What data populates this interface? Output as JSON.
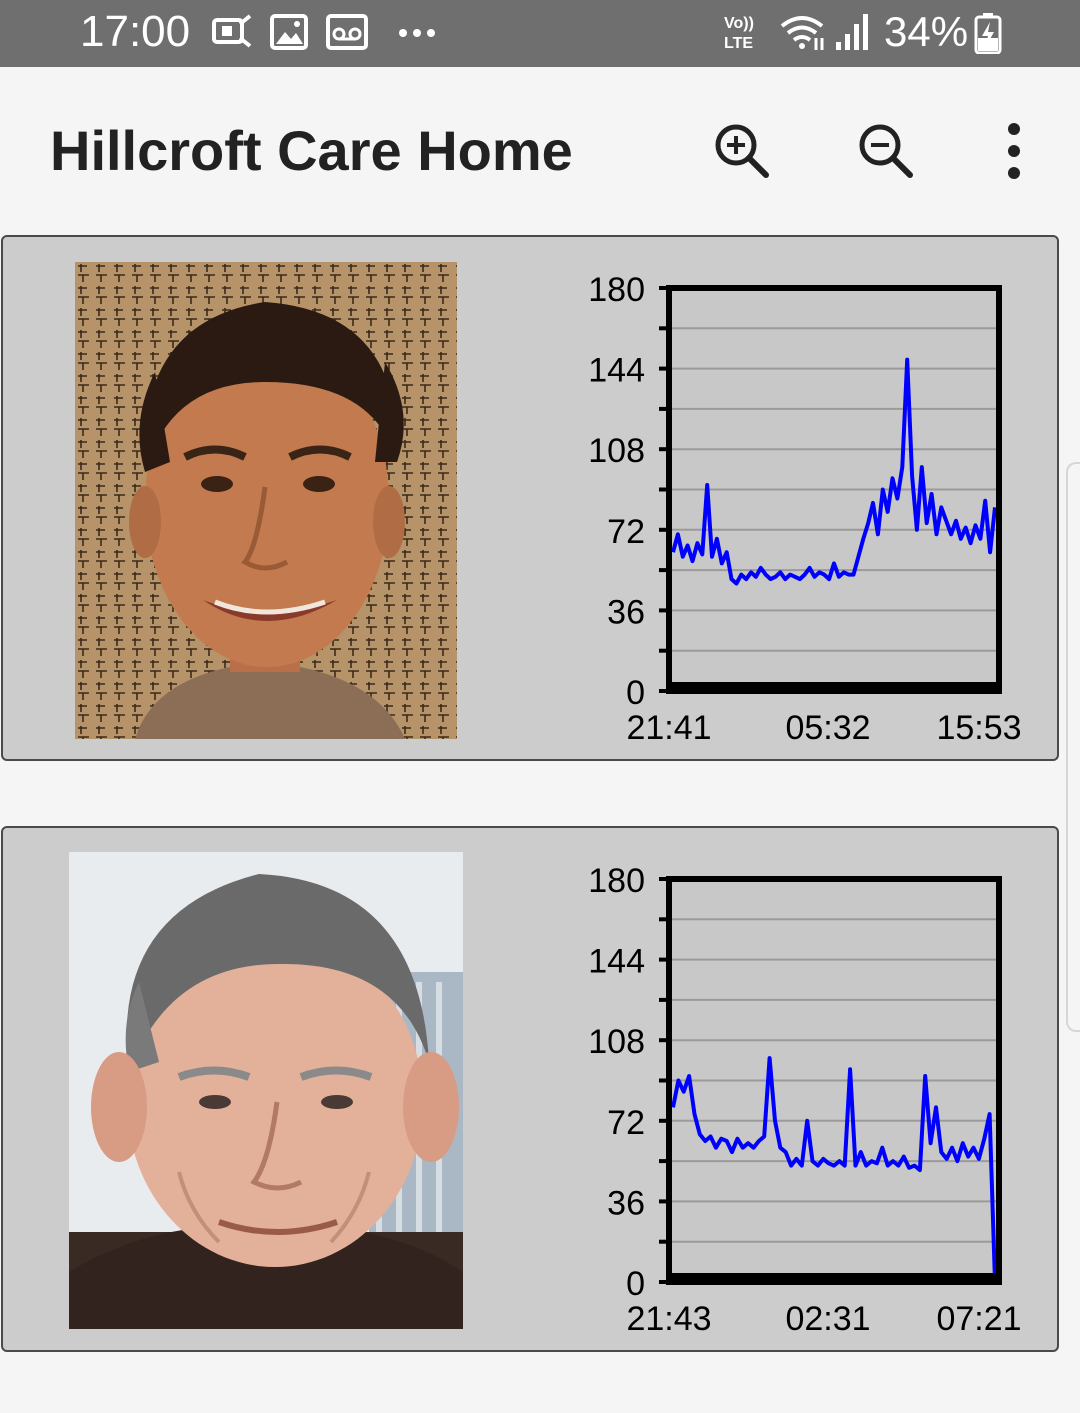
{
  "status_bar": {
    "time": "17:00",
    "battery": "34%",
    "icons": [
      "sim-card-icon",
      "image-icon",
      "voicemail-icon",
      "more-dots-icon",
      "volte-icon",
      "wifi-icon",
      "signal-icon",
      "battery-charging-icon"
    ]
  },
  "app_bar": {
    "title": "Hillcroft Care Home",
    "actions": [
      "zoom-in-icon",
      "zoom-out-icon",
      "overflow-menu-icon"
    ]
  },
  "colors": {
    "status_bar_bg": "#6f6f6f",
    "card_bg": "#cccccc",
    "plot_bg": "#c8c8c8",
    "series_line": "#0000ff"
  },
  "residents": [
    {
      "photo": "resident-photo-1",
      "chart_data": {
        "type": "line",
        "title": "",
        "xlabel": "",
        "ylabel": "",
        "yticks": [
          "0",
          "36",
          "72",
          "108",
          "144",
          "180"
        ],
        "ylim": [
          0,
          180
        ],
        "xticks": [
          "21:41",
          "05:32",
          "15:53"
        ],
        "grid": true,
        "series": [
          {
            "values": [
              62,
              70,
              60,
              65,
              58,
              66,
              61,
              92,
              60,
              68,
              57,
              62,
              50,
              48,
              52,
              50,
              53,
              51,
              55,
              52,
              50,
              51,
              53,
              50,
              52,
              51,
              50,
              52,
              55,
              51,
              53,
              52,
              50,
              57,
              51,
              53,
              52,
              52,
              60,
              68,
              75,
              84,
              70,
              90,
              80,
              95,
              86,
              100,
              148,
              96,
              72,
              100,
              75,
              88,
              70,
              82,
              76,
              70,
              76,
              68,
              73,
              66,
              74,
              68,
              85,
              62,
              82
            ]
          }
        ]
      }
    },
    {
      "photo": "resident-photo-2",
      "chart_data": {
        "type": "line",
        "title": "",
        "xlabel": "",
        "ylabel": "",
        "yticks": [
          "0",
          "36",
          "72",
          "108",
          "144",
          "180"
        ],
        "ylim": [
          0,
          180
        ],
        "xticks": [
          "21:43",
          "02:31",
          "07:21"
        ],
        "grid": true,
        "series": [
          {
            "values": [
              78,
              90,
              85,
              92,
              75,
              66,
              63,
              65,
              60,
              64,
              63,
              58,
              64,
              60,
              62,
              60,
              63,
              65,
              100,
              72,
              60,
              58,
              52,
              55,
              52,
              72,
              54,
              52,
              55,
              53,
              52,
              54,
              52,
              95,
              52,
              58,
              52,
              54,
              53,
              60,
              52,
              54,
              52,
              56,
              51,
              52,
              50,
              92,
              62,
              78,
              58,
              55,
              60,
              54,
              62,
              56,
              60,
              55,
              64,
              75,
              0
            ]
          }
        ]
      }
    }
  ]
}
